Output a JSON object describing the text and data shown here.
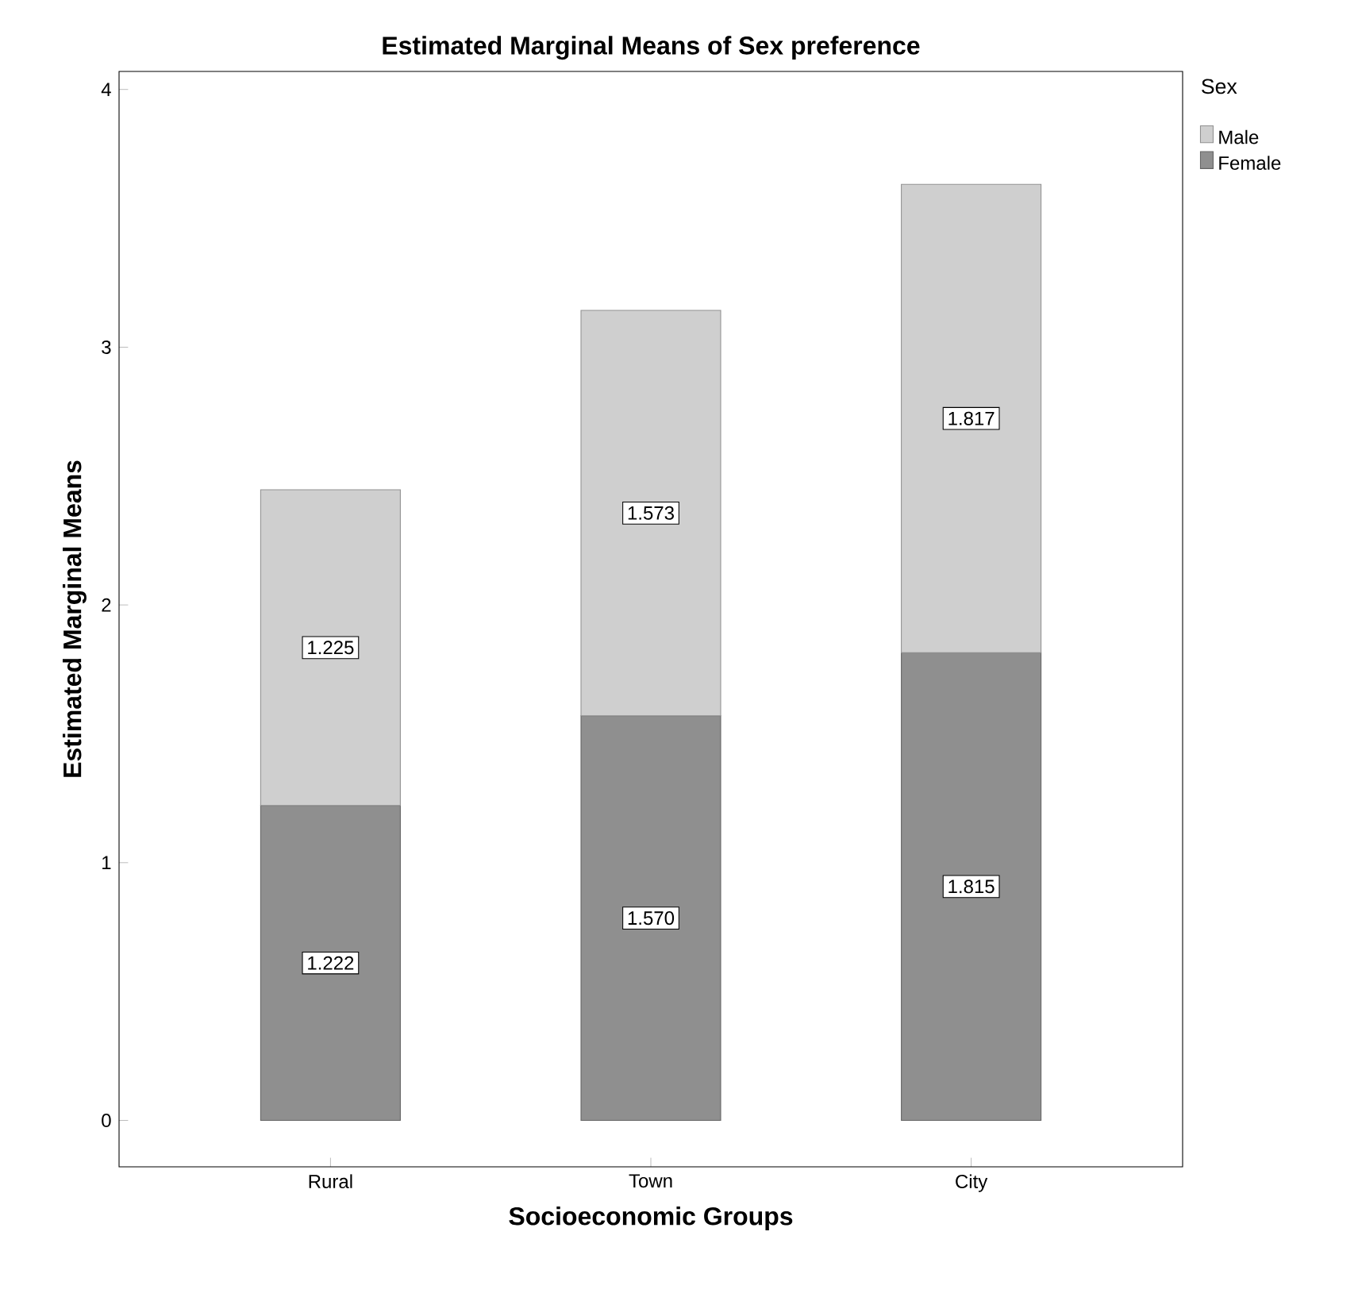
{
  "chart_data": {
    "type": "bar",
    "stacked": true,
    "title": "Estimated Marginal Means of Sex preference",
    "xlabel": "Socioeconomic Groups",
    "ylabel": "Estimated Marginal Means",
    "legend_title": "Sex",
    "legend": "top right",
    "categories": [
      "Rural",
      "Town",
      "City"
    ],
    "series": [
      {
        "name": "Female",
        "color": "#8f8f8f",
        "values": [
          1.222,
          1.57,
          1.815
        ],
        "value_labels": [
          "1.222",
          "1.570",
          "1.815"
        ]
      },
      {
        "name": "Male",
        "color": "#cfcfcf",
        "values": [
          1.225,
          1.573,
          1.817
        ],
        "value_labels": [
          "1.225",
          "1.573",
          "1.817"
        ]
      }
    ],
    "ylim": [
      -0.18,
      4.07
    ],
    "yticks": [
      0,
      1,
      2,
      3,
      4
    ]
  }
}
